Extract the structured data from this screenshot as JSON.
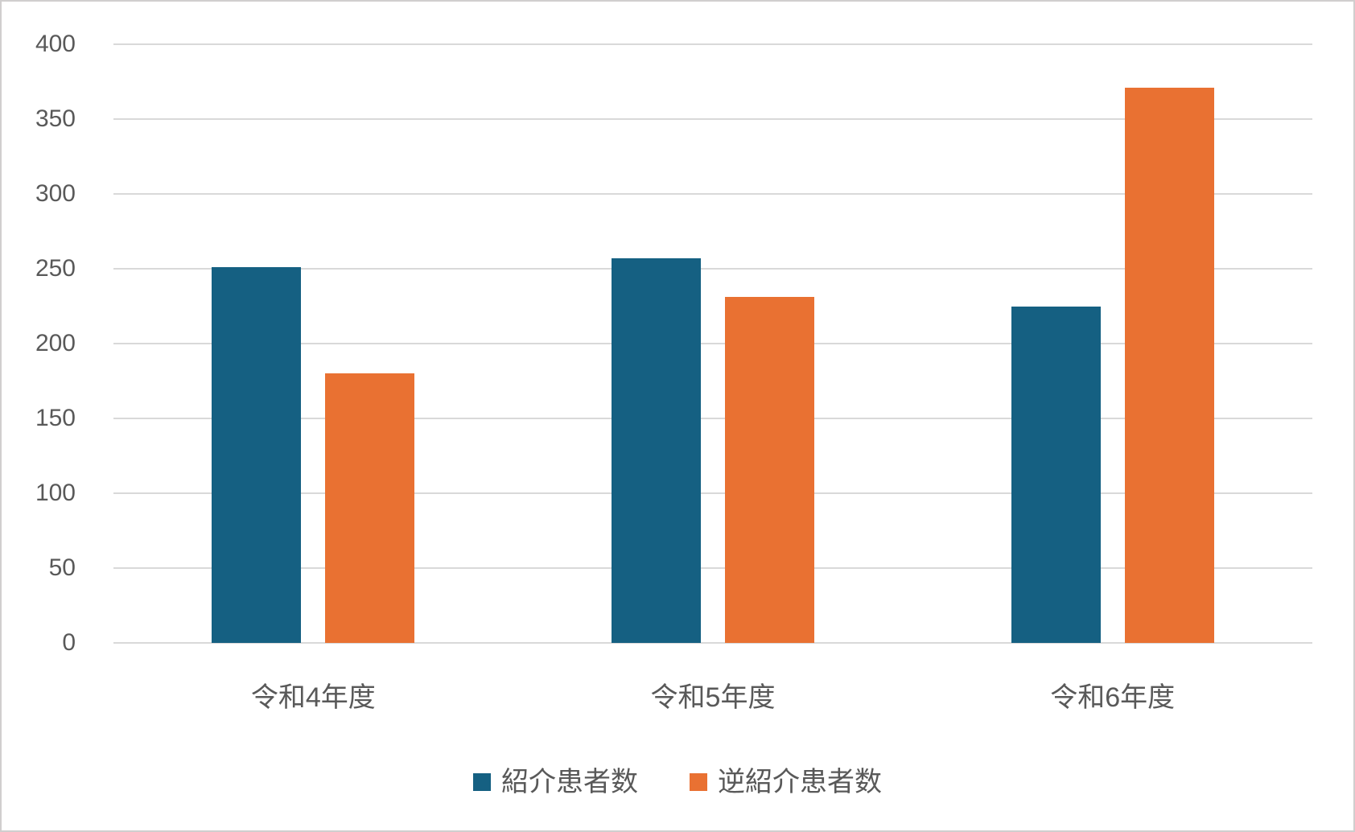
{
  "chart": {
    "background_color": "#FFFFFF",
    "border_color": "#D0CECE",
    "gridline_color": "#D9D9D9",
    "text_color": "#595959"
  },
  "chart_data": {
    "type": "bar",
    "title": "",
    "xlabel": "",
    "ylabel": "",
    "categories": [
      "令和4年度",
      "令和5年度",
      "令和6年度"
    ],
    "series": [
      {
        "name": "紹介患者数",
        "color": "#156082",
        "values": [
          251,
          257,
          225
        ]
      },
      {
        "name": "逆紹介患者数",
        "color": "#E97132",
        "values": [
          180,
          231,
          371
        ]
      }
    ],
    "ylim": [
      0,
      400
    ],
    "yticks": [
      0,
      50,
      100,
      150,
      200,
      250,
      300,
      350,
      400
    ],
    "grid": true,
    "legend_position": "bottom"
  }
}
